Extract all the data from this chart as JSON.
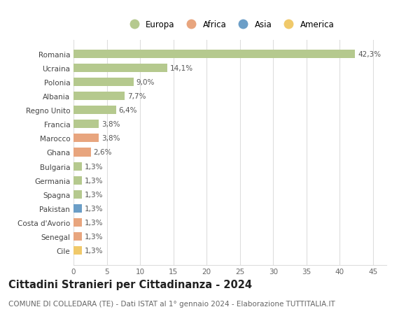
{
  "countries": [
    "Romania",
    "Ucraina",
    "Polonia",
    "Albania",
    "Regno Unito",
    "Francia",
    "Marocco",
    "Ghana",
    "Bulgaria",
    "Germania",
    "Spagna",
    "Pakistan",
    "Costa d'Avorio",
    "Senegal",
    "Cile"
  ],
  "values": [
    42.3,
    14.1,
    9.0,
    7.7,
    6.4,
    3.8,
    3.8,
    2.6,
    1.3,
    1.3,
    1.3,
    1.3,
    1.3,
    1.3,
    1.3
  ],
  "labels": [
    "42,3%",
    "14,1%",
    "9,0%",
    "7,7%",
    "6,4%",
    "3,8%",
    "3,8%",
    "2,6%",
    "1,3%",
    "1,3%",
    "1,3%",
    "1,3%",
    "1,3%",
    "1,3%",
    "1,3%"
  ],
  "continents": [
    "Europa",
    "Europa",
    "Europa",
    "Europa",
    "Europa",
    "Europa",
    "Africa",
    "Africa",
    "Europa",
    "Europa",
    "Europa",
    "Asia",
    "Africa",
    "Africa",
    "America"
  ],
  "colors": {
    "Europa": "#b5c98e",
    "Africa": "#e8a57e",
    "Asia": "#6b9ec7",
    "America": "#f0c96a"
  },
  "legend_order": [
    "Europa",
    "Africa",
    "Asia",
    "America"
  ],
  "title": "Cittadini Stranieri per Cittadinanza - 2024",
  "subtitle": "COMUNE DI COLLEDARA (TE) - Dati ISTAT al 1° gennaio 2024 - Elaborazione TUTTITALIA.IT",
  "xlim": [
    0,
    47
  ],
  "xticks": [
    0,
    5,
    10,
    15,
    20,
    25,
    30,
    35,
    40,
    45
  ],
  "background_color": "#ffffff",
  "grid_color": "#dddddd",
  "bar_height": 0.6,
  "label_fontsize": 7.5,
  "tick_fontsize": 7.5,
  "title_fontsize": 10.5,
  "subtitle_fontsize": 7.5,
  "legend_fontsize": 8.5
}
